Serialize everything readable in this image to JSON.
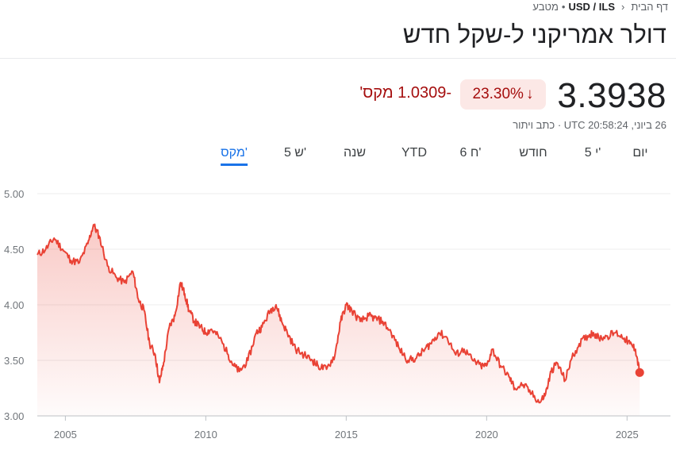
{
  "breadcrumb": {
    "home": "דף הבית",
    "pair": "USD / ILS",
    "category": "מטבע"
  },
  "header": {
    "title": "דולר אמריקני ל-שקל חדש"
  },
  "quote": {
    "price": "3.3938",
    "percent_change": "23.30%",
    "abs_change": "-1.0309 מקס'",
    "timestamp": "26 ביוני, UTC 20:58:24 · כתב ויתור",
    "trend": "down",
    "down_color": "#a50e0e"
  },
  "tabs": [
    {
      "label": "יום"
    },
    {
      "label": "5 י'"
    },
    {
      "label": "חודש"
    },
    {
      "label": "6 ח'"
    },
    {
      "label": "YTD"
    },
    {
      "label": "שנה"
    },
    {
      "label": "5 ש'"
    },
    {
      "label": "מקס'",
      "active": true
    }
  ],
  "chart_data": {
    "type": "area",
    "series_color": "#e94235",
    "y_tick_labels": [
      "5.00",
      "4.50",
      "4.00",
      "3.50",
      "3.00"
    ],
    "x_tick_labels": [
      "2005",
      "2010",
      "2015",
      "2020",
      "2025"
    ],
    "ylim": [
      3.0,
      5.0
    ],
    "xlim": [
      2004.0,
      2025.5
    ],
    "grid": true,
    "x": [
      2004.0,
      2004.3,
      2004.6,
      2004.9,
      2005.2,
      2005.5,
      2005.8,
      2006.0,
      2006.2,
      2006.5,
      2006.8,
      2007.1,
      2007.4,
      2007.6,
      2007.8,
      2008.0,
      2008.2,
      2008.35,
      2008.5,
      2008.7,
      2008.9,
      2009.1,
      2009.25,
      2009.4,
      2009.6,
      2009.8,
      2010.0,
      2010.2,
      2010.5,
      2010.8,
      2011.0,
      2011.2,
      2011.5,
      2011.8,
      2012.0,
      2012.3,
      2012.5,
      2012.7,
      2012.9,
      2013.2,
      2013.5,
      2013.8,
      2014.0,
      2014.3,
      2014.6,
      2014.8,
      2015.0,
      2015.2,
      2015.5,
      2015.8,
      2016.0,
      2016.3,
      2016.6,
      2016.9,
      2017.2,
      2017.5,
      2017.8,
      2018.0,
      2018.3,
      2018.6,
      2018.9,
      2019.2,
      2019.5,
      2019.8,
      2020.0,
      2020.2,
      2020.5,
      2020.8,
      2021.0,
      2021.3,
      2021.6,
      2021.9,
      2022.1,
      2022.3,
      2022.5,
      2022.8,
      2023.0,
      2023.3,
      2023.6,
      2023.8,
      2024.0,
      2024.3,
      2024.6,
      2024.9,
      2025.1,
      2025.3,
      2025.45
    ],
    "values": [
      4.45,
      4.5,
      4.6,
      4.5,
      4.4,
      4.38,
      4.55,
      4.72,
      4.62,
      4.35,
      4.25,
      4.2,
      4.3,
      4.05,
      3.95,
      3.65,
      3.55,
      3.3,
      3.48,
      3.8,
      3.9,
      4.2,
      4.1,
      3.95,
      3.85,
      3.8,
      3.75,
      3.78,
      3.7,
      3.55,
      3.45,
      3.4,
      3.5,
      3.75,
      3.8,
      3.95,
      4.0,
      3.85,
      3.75,
      3.6,
      3.55,
      3.5,
      3.45,
      3.42,
      3.55,
      3.85,
      4.0,
      3.95,
      3.85,
      3.9,
      3.88,
      3.85,
      3.75,
      3.6,
      3.5,
      3.52,
      3.6,
      3.65,
      3.75,
      3.7,
      3.55,
      3.6,
      3.5,
      3.45,
      3.45,
      3.6,
      3.45,
      3.35,
      3.25,
      3.28,
      3.2,
      3.12,
      3.2,
      3.4,
      3.48,
      3.32,
      3.5,
      3.65,
      3.72,
      3.75,
      3.7,
      3.72,
      3.75,
      3.7,
      3.65,
      3.6,
      3.39
    ]
  }
}
